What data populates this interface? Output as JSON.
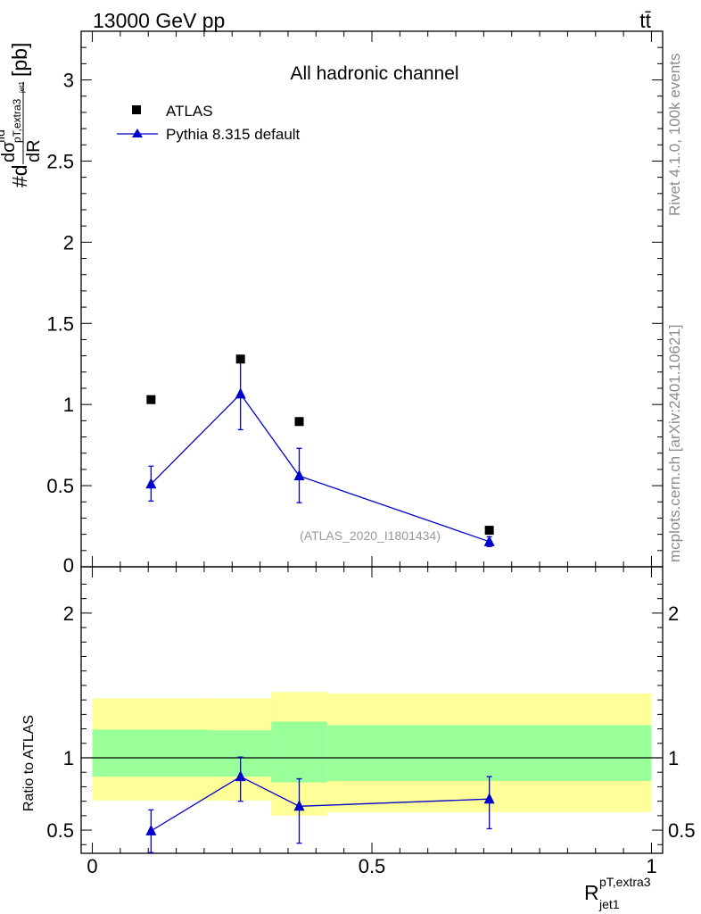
{
  "header": {
    "energy_label": "13000 GeV pp",
    "process_label": "tt̄"
  },
  "side_text": {
    "rivet": "Rivet 4.1.0,  100k events",
    "mcplots": "mcplots.cern.ch [arXiv:2401.10621]"
  },
  "chart_data": [
    {
      "type": "scatter",
      "panel": "main",
      "title": "All hadronic channel",
      "analysis_tag": "(ATLAS_2020_I1801434)",
      "ylabel_parts": {
        "num": "#d",
        "frac_top": "dσ",
        "frac_sup": "fid",
        "frac_sub_top": "pT,extra3",
        "frac_sub_small": "jet1",
        "frac_bottom": "dR",
        "unit": "[pb]"
      },
      "xlim": [
        -0.02,
        1.02
      ],
      "ylim": [
        0,
        3.3
      ],
      "yticks": [
        0.5,
        1,
        1.5,
        2,
        2.5,
        3
      ],
      "ytick_labels": [
        "0.5",
        "1",
        "1.5",
        "2",
        "2.5",
        "3"
      ],
      "y_zero_label": "0",
      "legend": {
        "position": "top-left",
        "entries": [
          "ATLAS",
          "Pythia 8.315 default"
        ]
      },
      "series": [
        {
          "name": "ATLAS",
          "color": "#000000",
          "marker": "square",
          "x": [
            0.105,
            0.265,
            0.37,
            0.71
          ],
          "y": [
            1.03,
            1.28,
            0.895,
            0.225
          ]
        },
        {
          "name": "Pythia 8.315 default",
          "color": "#0000cc",
          "marker": "triangle",
          "x": [
            0.105,
            0.265,
            0.37,
            0.71
          ],
          "y": [
            0.51,
            1.065,
            0.56,
            0.155
          ],
          "yerr_low": [
            0.105,
            0.22,
            0.165,
            0.03
          ],
          "yerr_high": [
            0.11,
            0.22,
            0.17,
            0.03
          ]
        }
      ]
    },
    {
      "type": "scatter",
      "panel": "ratio",
      "ylabel": "Ratio to ATLAS",
      "xlabel_parts": {
        "main": "R",
        "sup": "pT,extra3",
        "sub": "jet1"
      },
      "xlim": [
        -0.02,
        1.02
      ],
      "ylim": [
        0.34,
        2.32
      ],
      "xticks": [
        0,
        0.5,
        1
      ],
      "xtick_labels": [
        "0",
        "0.5",
        "1"
      ],
      "yticks": [
        0.5,
        1,
        2
      ],
      "ytick_labels": [
        "0.5",
        "1",
        "2"
      ],
      "reference_line": 1,
      "bands": [
        {
          "x_low": 0.0,
          "x_high": 0.21,
          "yellow_low": 0.705,
          "yellow_high": 1.41,
          "green_low": 0.87,
          "green_high": 1.195
        },
        {
          "x_low": 0.21,
          "x_high": 0.32,
          "yellow_low": 0.705,
          "yellow_high": 1.41,
          "green_low": 0.87,
          "green_high": 1.19
        },
        {
          "x_low": 0.32,
          "x_high": 0.42,
          "yellow_low": 0.6,
          "yellow_high": 1.455,
          "green_low": 0.83,
          "green_high": 1.25
        },
        {
          "x_low": 0.42,
          "x_high": 1.0,
          "yellow_low": 0.625,
          "yellow_high": 1.445,
          "green_low": 0.84,
          "green_high": 1.225
        }
      ],
      "series": [
        {
          "name": "Pythia 8.315 default",
          "color": "#0000cc",
          "marker": "triangle",
          "x": [
            0.105,
            0.265,
            0.37,
            0.71
          ],
          "y": [
            0.495,
            0.87,
            0.665,
            0.715
          ],
          "yerr_low": [
            0.15,
            0.17,
            0.255,
            0.205
          ],
          "yerr_high": [
            0.145,
            0.135,
            0.19,
            0.155
          ]
        }
      ]
    }
  ]
}
